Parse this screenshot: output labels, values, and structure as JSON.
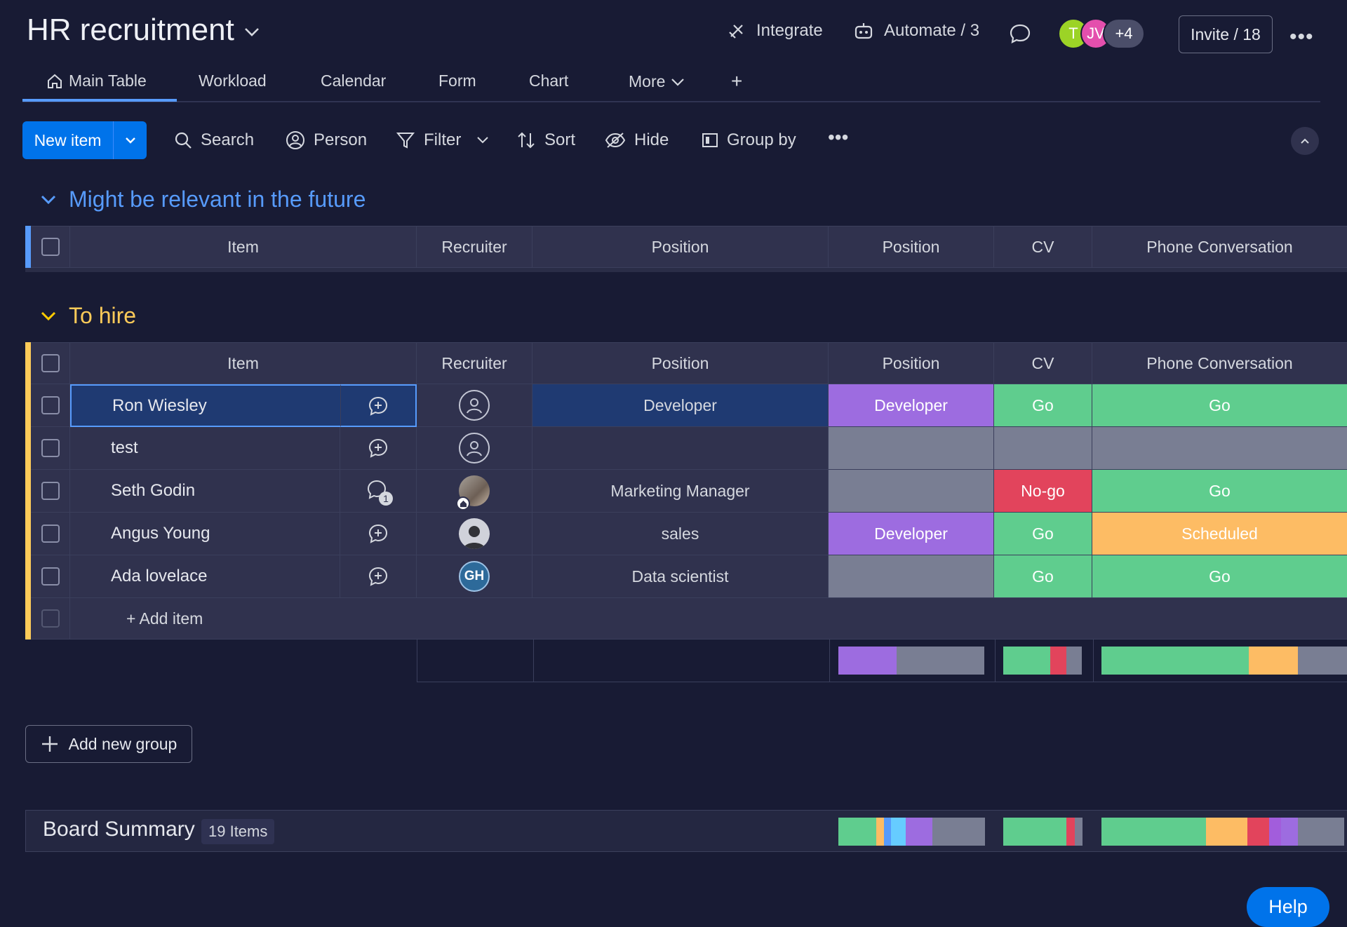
{
  "board": {
    "title": "HR recruitment"
  },
  "header": {
    "integrate": "Integrate",
    "automate": "Automate / 3",
    "avatars": [
      {
        "initials": "T",
        "color": "#9cd326"
      },
      {
        "initials": "JV",
        "color": "#e44fad"
      },
      {
        "initials": "+4",
        "color": "#4b4e69"
      }
    ],
    "invite": "Invite / 18"
  },
  "tabs": [
    {
      "label": "Main Table",
      "active": true
    },
    {
      "label": "Workload"
    },
    {
      "label": "Calendar"
    },
    {
      "label": "Form"
    },
    {
      "label": "Chart"
    },
    {
      "label": "More"
    }
  ],
  "toolbar": {
    "new_item": "New item",
    "search": "Search",
    "person": "Person",
    "filter": "Filter",
    "sort": "Sort",
    "hide": "Hide",
    "group_by": "Group by"
  },
  "columns": [
    "Item",
    "Recruiter",
    "Position",
    "Position",
    "CV",
    "Phone Conversation"
  ],
  "groups": [
    {
      "title": "Might be relevant in the future",
      "color": "#579bfc"
    },
    {
      "title": "To hire",
      "color": "#ffcb00"
    }
  ],
  "rows": [
    {
      "name": "Ron Wiesley",
      "recruiter": "empty",
      "position_text": "Developer",
      "position_status": "Developer",
      "cv": "Go",
      "phone": "Go"
    },
    {
      "name": "test",
      "recruiter": "empty",
      "position_text": "",
      "position_status": "",
      "cv": "",
      "phone": ""
    },
    {
      "name": "Seth Godin",
      "recruiter": "photo",
      "updates": "1",
      "position_text": "Marketing Manager",
      "position_status": "",
      "cv": "No-go",
      "phone": "Go"
    },
    {
      "name": "Angus Young",
      "recruiter": "silhouette",
      "position_text": "sales",
      "position_status": "Developer",
      "cv": "Go",
      "phone": "Scheduled"
    },
    {
      "name": "Ada lovelace",
      "recruiter": "GH",
      "position_text": "Data scientist",
      "position_status": "",
      "cv": "Go",
      "phone": "Go"
    }
  ],
  "add_item": "+ Add item",
  "add_group": "Add new group",
  "board_summary": {
    "label": "Board Summary",
    "count": "19 Items"
  },
  "help": "Help",
  "status_colors": {
    "Developer": "#9d6ce0",
    "Go": "#5fcd8e",
    "No-go": "#e2445c",
    "Scheduled": "#fdbc64",
    "empty": "#797e93"
  }
}
